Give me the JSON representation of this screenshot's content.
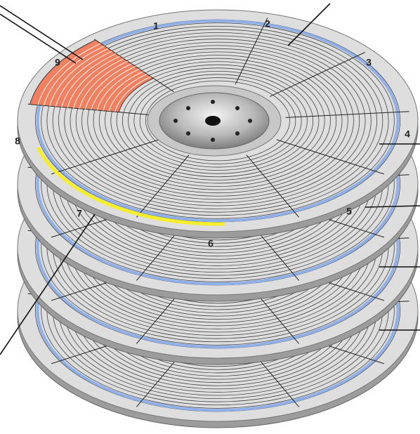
{
  "sector_labels": [
    "1",
    "2",
    "3",
    "4",
    "5",
    "6",
    "7",
    "8",
    "9"
  ]
}
